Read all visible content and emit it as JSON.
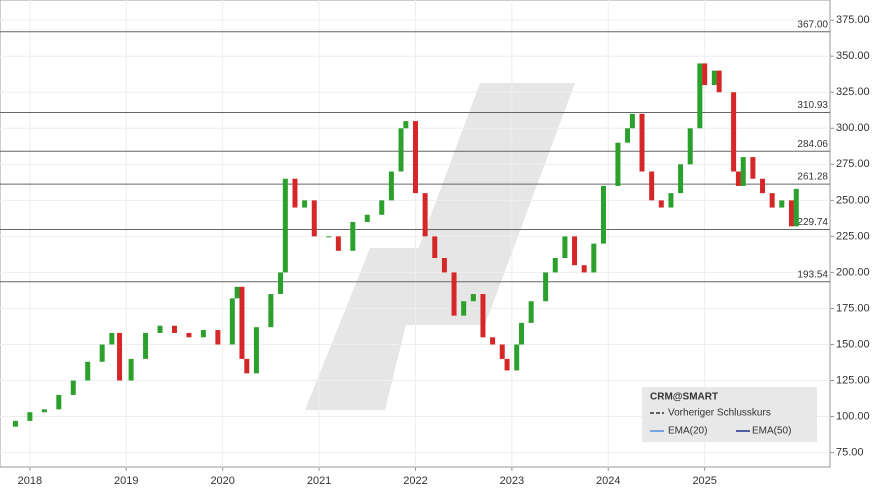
{
  "chart_data": {
    "type": "candlestick",
    "title": "CRM@SMART",
    "x": [
      2017.7,
      2017.85,
      2018.0,
      2018.15,
      2018.3,
      2018.45,
      2018.6,
      2018.75,
      2018.85,
      2018.93,
      2019.05,
      2019.2,
      2019.35,
      2019.5,
      2019.65,
      2019.8,
      2019.95,
      2020.1,
      2020.15,
      2020.2,
      2020.25,
      2020.35,
      2020.5,
      2020.6,
      2020.65,
      2020.75,
      2020.85,
      2020.95,
      2021.1,
      2021.2,
      2021.35,
      2021.5,
      2021.65,
      2021.75,
      2021.85,
      2021.9,
      2022.0,
      2022.1,
      2022.2,
      2022.3,
      2022.4,
      2022.5,
      2022.6,
      2022.7,
      2022.8,
      2022.9,
      2022.95,
      2023.05,
      2023.1,
      2023.2,
      2023.35,
      2023.45,
      2023.55,
      2023.65,
      2023.75,
      2023.85,
      2023.95,
      2024.1,
      2024.2,
      2024.25,
      2024.35,
      2024.45,
      2024.55,
      2024.65,
      2024.75,
      2024.85,
      2024.95,
      2025.0,
      2025.1,
      2025.15,
      2025.3,
      2025.35,
      2025.4,
      2025.5,
      2025.6,
      2025.7,
      2025.8,
      2025.9,
      2025.95
    ],
    "values": [
      93,
      97,
      103,
      105,
      115,
      125,
      138,
      150,
      158,
      125,
      140,
      158,
      163,
      158,
      155,
      160,
      150,
      182,
      190,
      140,
      130,
      162,
      185,
      200,
      265,
      245,
      250,
      225,
      225,
      215,
      235,
      240,
      250,
      270,
      300,
      305,
      255,
      225,
      210,
      200,
      170,
      180,
      185,
      155,
      150,
      140,
      132,
      150,
      165,
      180,
      200,
      210,
      225,
      205,
      200,
      220,
      260,
      290,
      300,
      310,
      270,
      250,
      245,
      255,
      275,
      300,
      345,
      330,
      340,
      325,
      270,
      260,
      280,
      265,
      255,
      245,
      250,
      232,
      258
    ],
    "up_color": "#2ca02c",
    "down_color": "#d62728",
    "xlim": [
      2017.69,
      2026.3
    ],
    "xticks": [
      2018,
      2019,
      2020,
      2021,
      2022,
      2023,
      2024,
      2025
    ],
    "ylim": [
      65,
      389
    ],
    "yticks": [
      {
        "value": 75,
        "label": "75.00"
      },
      {
        "value": 100,
        "label": "100.00"
      },
      {
        "value": 125,
        "label": "125.00"
      },
      {
        "value": 150,
        "label": "150.00"
      },
      {
        "value": 175,
        "label": "175.00"
      },
      {
        "value": 200,
        "label": "200.00"
      },
      {
        "value": 225,
        "label": "225.00"
      },
      {
        "value": 250,
        "label": "250.00"
      },
      {
        "value": 275,
        "label": "275.00"
      },
      {
        "value": 300,
        "label": "300.00"
      },
      {
        "value": 325,
        "label": "325.00"
      },
      {
        "value": 350,
        "label": "350.00"
      },
      {
        "value": 375,
        "label": "375.00"
      }
    ],
    "grid": true,
    "levels": [
      {
        "value": 367,
        "label": "367.00"
      },
      {
        "value": 310.93,
        "label": "310.93"
      },
      {
        "value": 284.06,
        "label": "284.06"
      },
      {
        "value": 261.28,
        "label": "261.28"
      },
      {
        "value": 229.74,
        "label": "229.74"
      },
      {
        "value": 193.54,
        "label": "193.54"
      }
    ],
    "legend": [
      "Vorheriger Schlusskurs",
      "EMA(20)",
      "EMA(50)"
    ]
  }
}
